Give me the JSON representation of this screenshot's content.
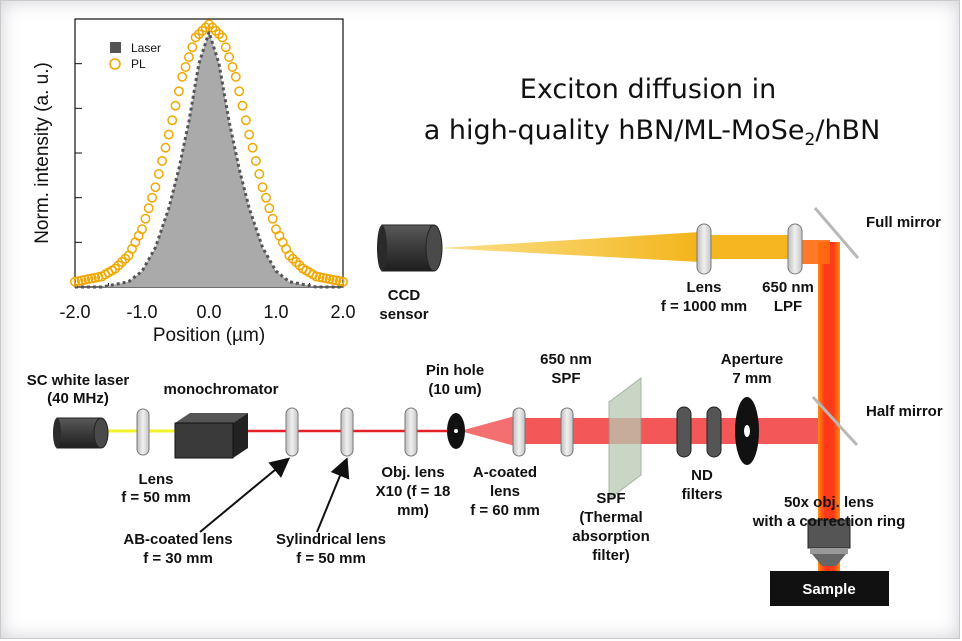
{
  "title": {
    "line1": "Exciton diffusion in",
    "line2_prefix": "a high-quality  hBN/ML-MoSe",
    "line2_sub": "2",
    "line2_suffix": "/hBN"
  },
  "chart_data": {
    "type": "area",
    "xlabel": "Position (µm)",
    "ylabel": "Norm. intensity (a. u.)",
    "xlim": [
      -2.0,
      2.0
    ],
    "ylim": [
      0,
      1.02
    ],
    "x_ticks": [
      "-2.0",
      "-1.0",
      "0.0",
      "1.0",
      "2.0"
    ],
    "legend_placement": "top-left",
    "series": [
      {
        "name": "Laser",
        "style": "filled-gray-with-dotted-outline",
        "color": "#aaaaaa",
        "x": [
          -2.0,
          -1.6,
          -1.2,
          -1.0,
          -0.8,
          -0.6,
          -0.45,
          -0.3,
          -0.15,
          0.0,
          0.15,
          0.3,
          0.45,
          0.6,
          0.8,
          1.0,
          1.2,
          1.6,
          2.0
        ],
        "y": [
          0.0,
          0.0,
          0.02,
          0.06,
          0.15,
          0.3,
          0.45,
          0.63,
          0.85,
          0.97,
          0.85,
          0.63,
          0.45,
          0.3,
          0.15,
          0.06,
          0.02,
          0.0,
          0.0
        ]
      },
      {
        "name": "PL",
        "style": "open-circles",
        "color": "#f0a800",
        "x": [
          -2.0,
          -1.8,
          -1.6,
          -1.4,
          -1.2,
          -1.0,
          -0.8,
          -0.6,
          -0.4,
          -0.2,
          0.0,
          0.2,
          0.4,
          0.6,
          0.8,
          1.0,
          1.2,
          1.4,
          1.6,
          1.8,
          2.0
        ],
        "y": [
          0.02,
          0.03,
          0.04,
          0.07,
          0.12,
          0.22,
          0.38,
          0.58,
          0.8,
          0.95,
          1.0,
          0.95,
          0.8,
          0.58,
          0.38,
          0.22,
          0.12,
          0.07,
          0.04,
          0.03,
          0.02
        ]
      }
    ]
  },
  "labels": {
    "sc_laser": [
      "SC white laser",
      "(40 MHz)"
    ],
    "monochromator": "monochromator",
    "lens1": [
      "Lens",
      "f = 50 mm"
    ],
    "ab_lens": [
      "AB-coated lens",
      "f = 30 mm"
    ],
    "cyl_lens": [
      "Sylindrical lens",
      "f = 50 mm"
    ],
    "obj_lens": [
      "Obj. lens",
      "X10 (f = 18",
      "mm)"
    ],
    "pin_hole": [
      "Pin hole",
      "(10 um)"
    ],
    "a_lens": [
      "A-coated",
      "lens",
      "f = 60 mm"
    ],
    "spf650": [
      "650 nm",
      "SPF"
    ],
    "spf_thermal": [
      "SPF",
      "(Thermal",
      "absorption",
      "filter)"
    ],
    "nd_filters": [
      "ND",
      "filters"
    ],
    "aperture": [
      "Aperture",
      "7 mm"
    ],
    "half_mirror": "Half mirror",
    "full_mirror": "Full mirror",
    "obj50": [
      "50x obj. lens",
      "with a correction ring"
    ],
    "sample": "Sample",
    "ccd": [
      "CCD",
      "sensor"
    ],
    "lens1000": [
      "Lens",
      "f = 1000 mm"
    ],
    "lpf650": [
      "650 nm",
      "LPF"
    ]
  },
  "colors": {
    "laser_red": "#f02020",
    "beam_orange": "#ff8a10",
    "beam_yellow": "#f6c232",
    "lens_fill": "#dcdcdc",
    "device_dark": "#3a3a3a"
  }
}
